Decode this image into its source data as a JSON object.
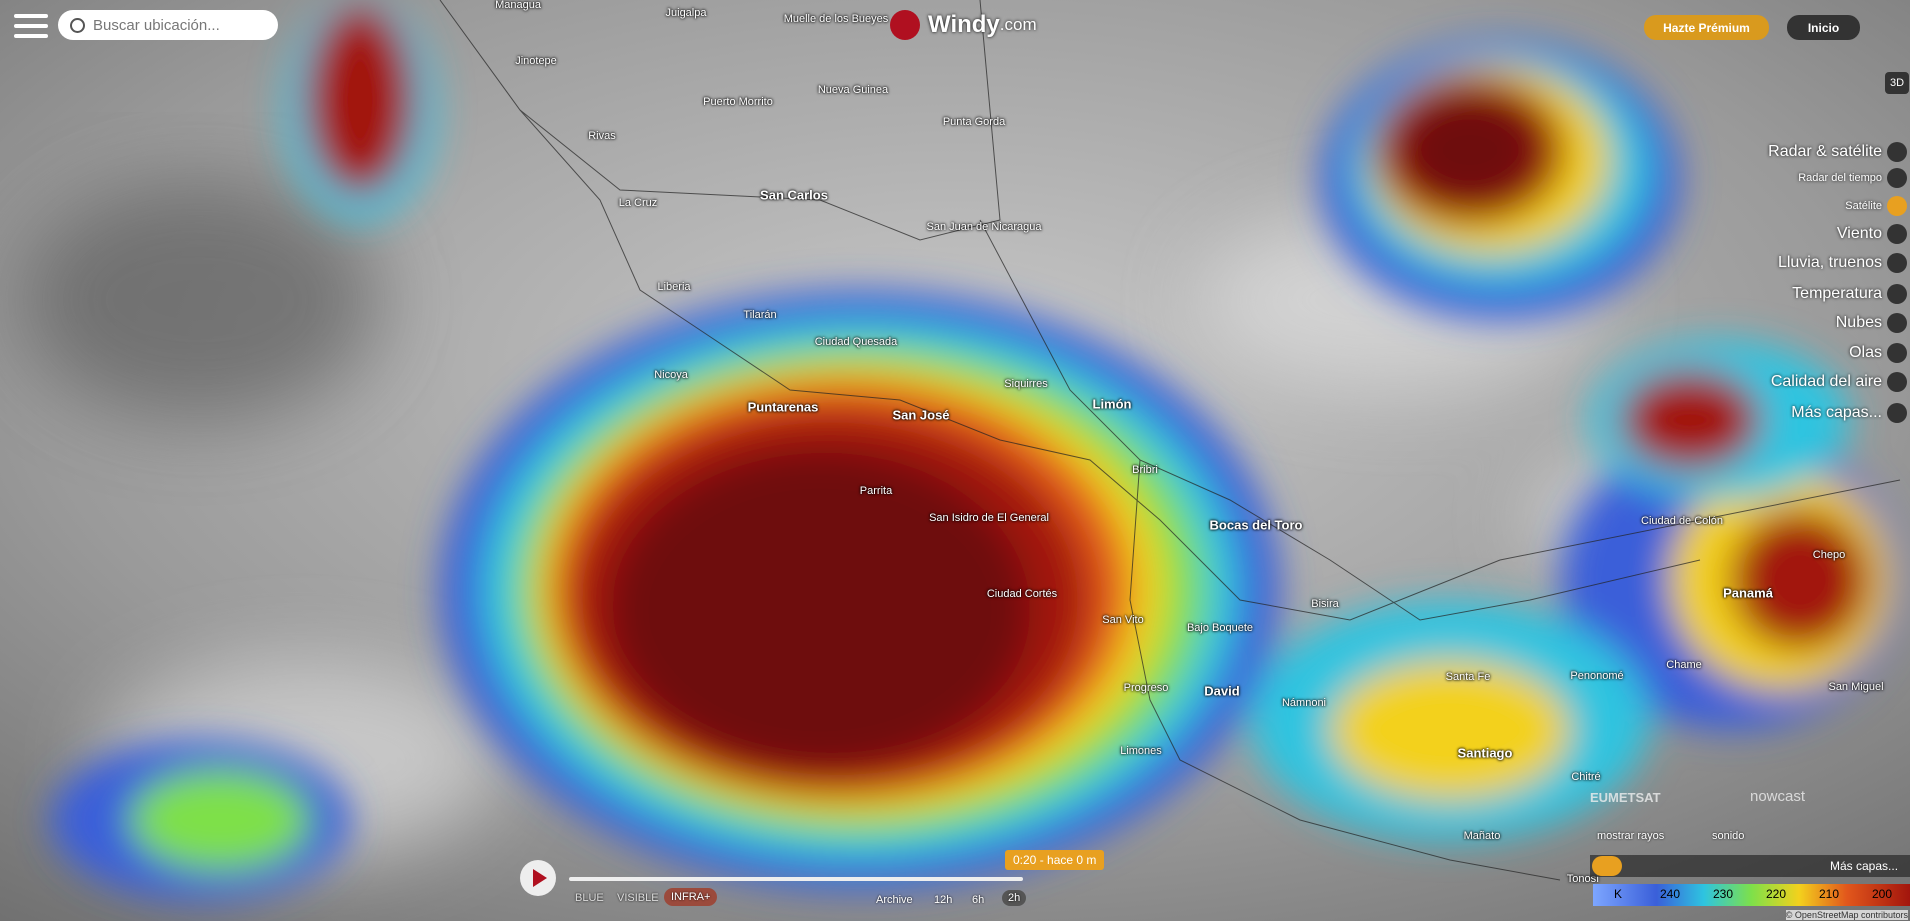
{
  "header": {
    "search_placeholder": "Buscar ubicación...",
    "logo": "Windy",
    "logo_suffix": ".com",
    "premium": "Hazte Prémium",
    "login": "Inicio"
  },
  "map_labels": [
    "Managua",
    "Juigalpa",
    "Muelle de los Bueyes",
    "Jinotepe",
    "Puerto Morrito",
    "Nueva Guinea",
    "Punta Gorda",
    "Rivas",
    "San Carlos",
    "La Cruz",
    "San Juan de Nicaragua",
    "Liberia",
    "Tilarán",
    "Ciudad Quesada",
    "Nicoya",
    "Puntarenas",
    "San José",
    "Siquirres",
    "Limón",
    "Bribri",
    "Parrita",
    "San Isidro de El General",
    "Bocas del Toro",
    "Ciudad Cortés",
    "Bisira",
    "San Vito",
    "Bajo Boquete",
    "David",
    "Progreso",
    "Námnoni",
    "Santa Fe",
    "Penonomé",
    "Chame",
    "San Miguel",
    "Limones",
    "Santiago",
    "Chitré",
    "Ciudad de Colón",
    "Chepo",
    "Panamá",
    "Tonosí",
    "Mañato"
  ],
  "layers": [
    "Radar & satélite",
    "Radar del tiempo",
    "Satélite",
    "Viento",
    "Lluvia, truenos",
    "Temperatura",
    "Nubes",
    "Olas",
    "Calidad del aire",
    "Más capas..."
  ],
  "side_buttons": [
    "3D"
  ],
  "playback": {
    "modes": [
      "BLUE",
      "VISIBLE",
      "INFRA+"
    ],
    "time": "0:20 - hace 0 m",
    "ranges": [
      "Archive",
      "12h",
      "6h",
      "2h"
    ]
  },
  "options": {
    "lightning": "mostrar rayos",
    "sound": "sonido",
    "more_layers": "Más capas..."
  },
  "legend": {
    "unit": "K",
    "values": [
      240,
      230,
      220,
      210,
      200
    ]
  },
  "credits": {
    "eumetsat": "EUMETSAT",
    "nowcast": "nowcast",
    "attribution": "© OpenStreetMap contributors"
  }
}
